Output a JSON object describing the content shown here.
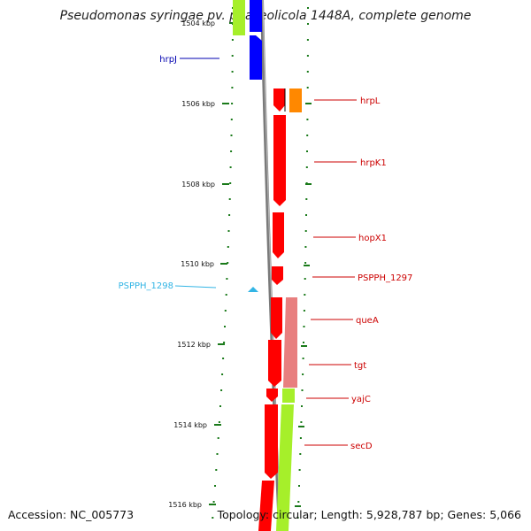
{
  "title": "Pseudomonas syringae pv. phaseolicola 1448A, complete genome",
  "accession": "Accession: NC_005773",
  "topology": "Topology: circular; Length: 5,928,787 bp; Genes: 5,066",
  "axis": {
    "unit": "kbp",
    "ticks": [
      "1504 kbp",
      "1506 kbp",
      "1508 kbp",
      "1510 kbp",
      "1512 kbp",
      "1514 kbp",
      "1516 kbp"
    ]
  },
  "colors": {
    "backbone": "#7a7a7a",
    "tick": "#1a7a1a",
    "red_gene": "#ff0000",
    "light_red_gene": "#e87f7f",
    "lime_gene": "#a6ef2a",
    "blue_gene": "#0000ff",
    "orange_gene": "#ff8800",
    "cyan_label": "#33b5e5",
    "blue_label": "#0000b0",
    "red_label": "#cc0000"
  },
  "genes": [
    {
      "name": "hrpJ",
      "color": "blue_label"
    },
    {
      "name": "hrpL",
      "color": "red_label"
    },
    {
      "name": "hrpK1",
      "color": "red_label"
    },
    {
      "name": "hopX1",
      "color": "red_label"
    },
    {
      "name": "PSPPH_1298",
      "color": "cyan_label"
    },
    {
      "name": "PSPPH_1297",
      "color": "red_label"
    },
    {
      "name": "queA",
      "color": "red_label"
    },
    {
      "name": "tgt",
      "color": "red_label"
    },
    {
      "name": "yajC",
      "color": "red_label"
    },
    {
      "name": "secD",
      "color": "red_label"
    }
  ]
}
